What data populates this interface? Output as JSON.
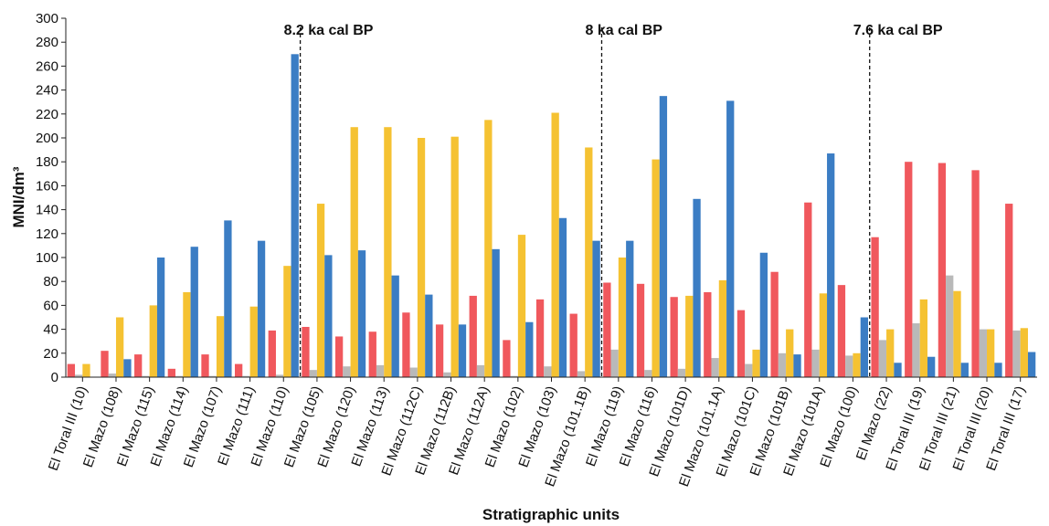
{
  "chart_data": {
    "type": "bar",
    "ylabel": "MNI/dm³",
    "xlabel": "Stratigraphic units",
    "categories": [
      "El Toral III (10)",
      "El Mazo (108)",
      "El Mazo (115)",
      "El Mazo (114)",
      "El Mazo (107)",
      "El Mazo (111)",
      "El Mazo (110)",
      "El Mazo (105)",
      "El Mazo (120)",
      "El Mazo (113)",
      "El Mazo (112C)",
      "El Mazo (112B)",
      "El Mazo (112A)",
      "El Mazo (102)",
      "El Mazo (103)",
      "El Mazo (101.1B)",
      "El Mazo (119)",
      "El Mazo (116)",
      "El Mazo (101D)",
      "El Mazo (101.1A)",
      "El Mazo (101C)",
      "El Mazo (101B)",
      "El Mazo (101A)",
      "El Mazo (100)",
      "El Mazo (22)",
      "El Toral III (19)",
      "El Toral III (21)",
      "El Toral III (20)",
      "El Toral III (17)"
    ],
    "series": [
      {
        "color": "#f0585d",
        "values": [
          11,
          22,
          19,
          7,
          19,
          11,
          39,
          42,
          34,
          38,
          54,
          44,
          68,
          31,
          65,
          53,
          79,
          78,
          67,
          71,
          56,
          88,
          146,
          77,
          117,
          180,
          179,
          173,
          145
        ]
      },
      {
        "color": "#b9b9b9",
        "values": [
          2,
          3,
          1,
          1,
          1,
          1,
          2,
          6,
          9,
          10,
          8,
          4,
          10,
          1,
          9,
          5,
          23,
          6,
          7,
          16,
          11,
          20,
          23,
          18,
          31,
          45,
          85,
          40,
          39
        ]
      },
      {
        "color": "#f5c232",
        "values": [
          11,
          50,
          60,
          71,
          51,
          59,
          93,
          145,
          209,
          209,
          200,
          201,
          215,
          119,
          221,
          192,
          100,
          182,
          68,
          81,
          23,
          40,
          70,
          20,
          40,
          65,
          72,
          40,
          41
        ]
      },
      {
        "color": "#3b7dc4",
        "values": [
          0,
          15,
          100,
          109,
          131,
          114,
          270,
          102,
          106,
          85,
          69,
          44,
          107,
          46,
          133,
          114,
          114,
          235,
          149,
          231,
          104,
          19,
          187,
          50,
          12,
          17,
          12,
          12,
          21
        ]
      }
    ],
    "annotations": [
      {
        "text": "8.2 ka cal BP",
        "before_category": 7
      },
      {
        "text": "8 ka cal BP",
        "before_category": 16
      },
      {
        "text": "7.6 ka cal BP",
        "before_category": 24
      }
    ],
    "ylim": [
      0,
      300
    ],
    "yticks": [
      0,
      20,
      40,
      60,
      80,
      100,
      120,
      140,
      160,
      180,
      200,
      220,
      240,
      260,
      280,
      300
    ]
  }
}
